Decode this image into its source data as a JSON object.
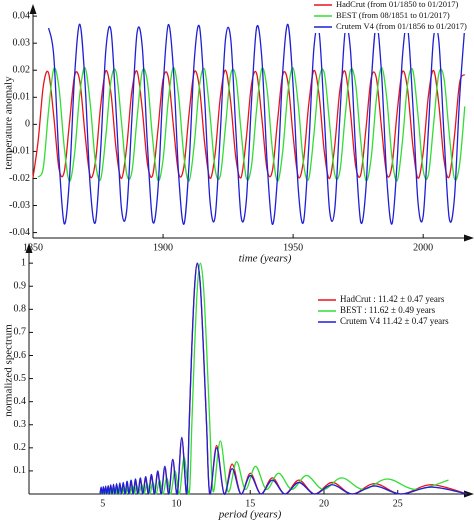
{
  "chart_data": [
    {
      "type": "line",
      "x_label": "time (years)",
      "y_label": "temperature anomaly",
      "x": [
        1850,
        1852,
        1854,
        1856,
        1858,
        1860,
        1862,
        1864,
        1866,
        1868,
        1870,
        1872,
        1874,
        1876,
        1878,
        1880,
        1882,
        1884,
        1886,
        1888,
        1890,
        1892,
        1894,
        1896,
        1898,
        1900,
        1902,
        1904,
        1906,
        1908,
        1910,
        1912,
        1914,
        1916,
        1918,
        1920,
        1922,
        1924,
        1926,
        1928,
        1930,
        1932,
        1934,
        1936,
        1938,
        1940,
        1942,
        1944,
        1946,
        1948,
        1950,
        1952,
        1954,
        1956,
        1958,
        1960,
        1962,
        1964,
        1966,
        1968,
        1970,
        1972,
        1974,
        1976,
        1978,
        1980,
        1982,
        1984,
        1986,
        1988,
        1990,
        1992,
        1994,
        1996,
        1998,
        2000,
        2002,
        2004,
        2006,
        2008,
        2010,
        2012,
        2014,
        2016
      ],
      "series": [
        {
          "name": "HadCrut (from 01/1850 to 01/2017)",
          "color": "#e8141c",
          "values": [
            -0.0197,
            -0.0059,
            0.0144,
            0.0189,
            0.0028,
            -0.0164,
            -0.0176,
            0.0004,
            0.018,
            0.0159,
            -0.0036,
            -0.0192,
            -0.0138,
            0.0067,
            0.0198,
            0.0113,
            -0.0096,
            -0.02,
            -0.0085,
            0.0122,
            0.0196,
            0.0056,
            -0.0146,
            -0.0188,
            -0.0024,
            0.0166,
            0.0175,
            -0.0008,
            -0.0182,
            -0.0157,
            0.0039,
            0.0193,
            0.0135,
            -0.007,
            -0.0199,
            -0.011,
            0.0099,
            0.02,
            0.0082,
            -0.0125,
            -0.0196,
            -0.0052,
            0.0148,
            0.0187,
            0.0021,
            -0.0168,
            -0.0173,
            0.0011,
            0.0183,
            0.0155,
            -0.0043,
            -0.0194,
            -0.0133,
            0.0073,
            0.0199,
            0.0107,
            -0.0102,
            -0.02,
            -0.0079,
            0.0128,
            0.0195,
            0.0049,
            -0.0151,
            -0.0186,
            -0.0017,
            0.017,
            0.0171,
            -0.0014,
            -0.0184,
            -0.0153,
            0.0046,
            0.0194,
            0.013,
            -0.0076,
            -0.0199,
            -0.0104,
            0.0105,
            0.0199,
            0.0076,
            -0.0131,
            -0.0194,
            -0.0046,
            0.0153,
            0.0184
          ]
        },
        {
          "name": "BEST (from 08/1851 to 01/2017)",
          "color": "#33dd33",
          "values": [
            null,
            -0.0195,
            -0.0158,
            0.0052,
            0.0205,
            0.0134,
            -0.0083,
            -0.021,
            -0.0107,
            0.0113,
            0.0209,
            0.0076,
            -0.014,
            -0.0203,
            -0.0044,
            0.0163,
            0.0192,
            0.0011,
            -0.0182,
            -0.0176,
            0.0022,
            0.0196,
            0.0156,
            -0.0055,
            -0.0206,
            -0.0131,
            0.0087,
            0.021,
            0.0103,
            -0.0116,
            -0.0209,
            -0.0073,
            0.0143,
            0.0202,
            0.0041,
            -0.0165,
            -0.019,
            -0.0008,
            0.0184,
            0.0174,
            -0.0026,
            -0.0198,
            -0.0153,
            0.0059,
            0.0206,
            0.0128,
            -0.009,
            -0.021,
            -0.01,
            0.0119,
            0.0208,
            0.007,
            -0.0145,
            -0.0201,
            -0.0037,
            0.0167,
            0.0189,
            0.0004,
            -0.0185,
            -0.0172,
            0.003,
            0.0199,
            0.0151,
            -0.0062,
            -0.0207,
            -0.0125,
            0.0093,
            0.021,
            0.0097,
            -0.0122,
            -0.0208,
            -0.0066,
            0.0148,
            0.02,
            0.0034,
            -0.0169,
            -0.0187,
            0.0,
            0.0187,
            0.017,
            -0.0033,
            -0.02,
            -0.0148,
            0.0066
          ]
        },
        {
          "name": "Crutem V4 (from 01/1856 to 01/2017)",
          "color": "#1f1fd6",
          "values": [
            null,
            null,
            null,
            0.0356,
            0.0251,
            -0.0129,
            -0.0367,
            -0.0204,
            0.0182,
            0.037,
            0.0153,
            -0.0231,
            -0.0362,
            -0.0097,
            0.0274,
            0.0346,
            0.0039,
            -0.031,
            -0.032,
            0.002,
            0.0338,
            0.0287,
            -0.0078,
            -0.0358,
            -0.0246,
            0.0135,
            0.0368,
            0.0199,
            -0.0188,
            -0.0369,
            -0.0147,
            0.0236,
            0.0361,
            0.0091,
            -0.0278,
            -0.0343,
            -0.0033,
            0.0314,
            0.0317,
            -0.0026,
            -0.0341,
            -0.0283,
            0.0084,
            0.0359,
            0.0241,
            -0.0141,
            -0.0369,
            -0.0194,
            0.0193,
            0.0369,
            0.0141,
            -0.0241,
            -0.036,
            -0.0085,
            0.0283,
            0.0341,
            0.0026,
            -0.0317,
            -0.0314,
            0.0033,
            0.0343,
            0.0279,
            -0.0091,
            -0.0361,
            -0.0236,
            0.0147,
            0.0369,
            0.0188,
            -0.0199,
            -0.0368,
            -0.0135,
            0.0246,
            0.0358,
            0.0078,
            -0.0287,
            -0.0339,
            -0.002,
            0.032,
            0.031,
            -0.0039,
            -0.0346,
            -0.0274,
            0.0097,
            0.0362
          ]
        }
      ],
      "xlim": [
        1850,
        2018
      ],
      "xticks": [
        1850,
        1900,
        1950,
        2000
      ],
      "ylim": [
        -0.042,
        0.043
      ],
      "yticks": [
        0.04,
        0.03,
        0.02,
        0.01,
        0,
        -0.01,
        -0.02,
        -0.03,
        -0.04
      ],
      "grid": false,
      "legend": "upper right"
    },
    {
      "type": "line",
      "x_label": "period (years)",
      "y_label": "normalized spectrum",
      "series": [
        {
          "name": "HadCrut : 11.42 ± 0.47 years",
          "color": "#e8141c",
          "x": [
            4.82,
            4.89,
            4.97,
            5.04,
            5.12,
            5.2,
            5.28,
            5.37,
            5.45,
            5.54,
            5.64,
            5.73,
            5.83,
            5.94,
            6.05,
            6.16,
            6.27,
            6.39,
            6.52,
            6.65,
            6.78,
            6.92,
            7.07,
            7.22,
            7.38,
            7.55,
            7.72,
            7.91,
            8.1,
            8.3,
            8.51,
            8.73,
            8.97,
            9.21,
            9.48,
            9.75,
            10.05,
            10.36,
            10.69,
            10.86,
            11.04,
            11.23,
            11.42,
            11.62,
            11.82,
            12.04,
            12.26,
            12.72,
            13.23,
            13.77,
            14.37,
            15.01,
            15.72,
            16.5,
            17.35,
            18.3,
            19.36,
            20.56,
            21.91,
            23.44,
            25.21,
            27.27,
            29.7
          ],
          "values": [
            0,
            0.026,
            0,
            0.028,
            0,
            0.03,
            0,
            0.032,
            0,
            0.035,
            0,
            0.038,
            0,
            0.04,
            0,
            0.042,
            0,
            0.045,
            0,
            0.048,
            0,
            0.05,
            0,
            0.055,
            0,
            0.06,
            0,
            0.065,
            0,
            0.075,
            0,
            0.09,
            0,
            0.11,
            0,
            0.15,
            0,
            0.24,
            0,
            0.3,
            0.637,
            0.9,
            1,
            0.9,
            0.637,
            0.3,
            0,
            0.21,
            0,
            0.13,
            0,
            0.09,
            0,
            0.07,
            0,
            0.06,
            0,
            0.05,
            0,
            0.045,
            0,
            0.04,
            0
          ]
        },
        {
          "name": "BEST      : 11.62 ± 0.49 years",
          "color": "#33dd33",
          "x": [
            4.86,
            4.93,
            5.0,
            5.08,
            5.16,
            5.24,
            5.32,
            5.41,
            5.5,
            5.59,
            5.69,
            5.78,
            5.89,
            5.99,
            6.1,
            6.21,
            6.33,
            6.45,
            6.58,
            6.71,
            6.85,
            7.0,
            7.15,
            7.3,
            7.46,
            7.64,
            7.81,
            8.0,
            8.2,
            8.4,
            8.62,
            8.85,
            9.09,
            9.34,
            9.61,
            9.9,
            10.2,
            10.52,
            10.86,
            11.04,
            11.23,
            11.42,
            11.62,
            11.83,
            12.04,
            12.26,
            12.49,
            12.97,
            13.5,
            14.07,
            14.68,
            15.36,
            16.1,
            16.92,
            17.82,
            18.82,
            19.95,
            21.21,
            22.66,
            24.3,
            26.21,
            28.44
          ],
          "values": [
            0,
            0.02,
            0,
            0.021,
            0,
            0.022,
            0,
            0.023,
            0,
            0.025,
            0,
            0.026,
            0,
            0.028,
            0,
            0.03,
            0,
            0.032,
            0,
            0.034,
            0,
            0.036,
            0,
            0.04,
            0,
            0.043,
            0,
            0.047,
            0,
            0.052,
            0,
            0.06,
            0,
            0.07,
            0,
            0.1,
            0,
            0.16,
            0,
            0.3,
            0.637,
            0.9,
            1,
            0.9,
            0.637,
            0.3,
            0.01,
            0.23,
            0.01,
            0.14,
            0.02,
            0.12,
            0.02,
            0.09,
            0.02,
            0.08,
            0.02,
            0.07,
            0.02,
            0.065,
            0.02,
            0.06
          ]
        },
        {
          "name": "Crutem V4  11.42 ± 0.47 years",
          "color": "#1f1fd6",
          "x": [
            4.82,
            4.89,
            4.97,
            5.04,
            5.12,
            5.2,
            5.28,
            5.37,
            5.45,
            5.54,
            5.64,
            5.73,
            5.83,
            5.94,
            6.05,
            6.16,
            6.27,
            6.39,
            6.52,
            6.65,
            6.78,
            6.92,
            7.07,
            7.22,
            7.38,
            7.55,
            7.72,
            7.91,
            8.1,
            8.3,
            8.51,
            8.73,
            8.97,
            9.21,
            9.48,
            9.75,
            10.05,
            10.36,
            10.69,
            10.86,
            11.04,
            11.23,
            11.42,
            11.62,
            11.82,
            12.04,
            12.26,
            12.72,
            13.23,
            13.77,
            14.37,
            15.01,
            15.72,
            16.5,
            17.35,
            18.3,
            19.36,
            20.56,
            21.91,
            23.44,
            25.21,
            27.27,
            29.7
          ],
          "values": [
            0,
            0.03,
            0,
            0.032,
            0,
            0.034,
            0,
            0.036,
            0,
            0.04,
            0,
            0.042,
            0,
            0.045,
            0,
            0.048,
            0,
            0.05,
            0,
            0.055,
            0,
            0.06,
            0,
            0.065,
            0,
            0.07,
            0,
            0.075,
            0,
            0.085,
            0,
            0.1,
            0,
            0.12,
            0,
            0.15,
            0,
            0.245,
            0,
            0.3,
            0.637,
            0.9,
            1,
            0.9,
            0.637,
            0.3,
            0,
            0.2,
            0,
            0.11,
            0,
            0.08,
            0,
            0.06,
            0,
            0.05,
            0,
            0.04,
            0,
            0.035,
            0,
            0.03,
            0
          ]
        }
      ],
      "xlim": [
        0,
        29.9
      ],
      "xticks": [
        5,
        10,
        15,
        20,
        25
      ],
      "ylim": [
        0,
        1.07
      ],
      "yticks": [
        0.1,
        0.2,
        0.3,
        0.4,
        0.5,
        0.6,
        0.7,
        0.8,
        0.9,
        1
      ],
      "grid": false,
      "legend": "right"
    }
  ]
}
